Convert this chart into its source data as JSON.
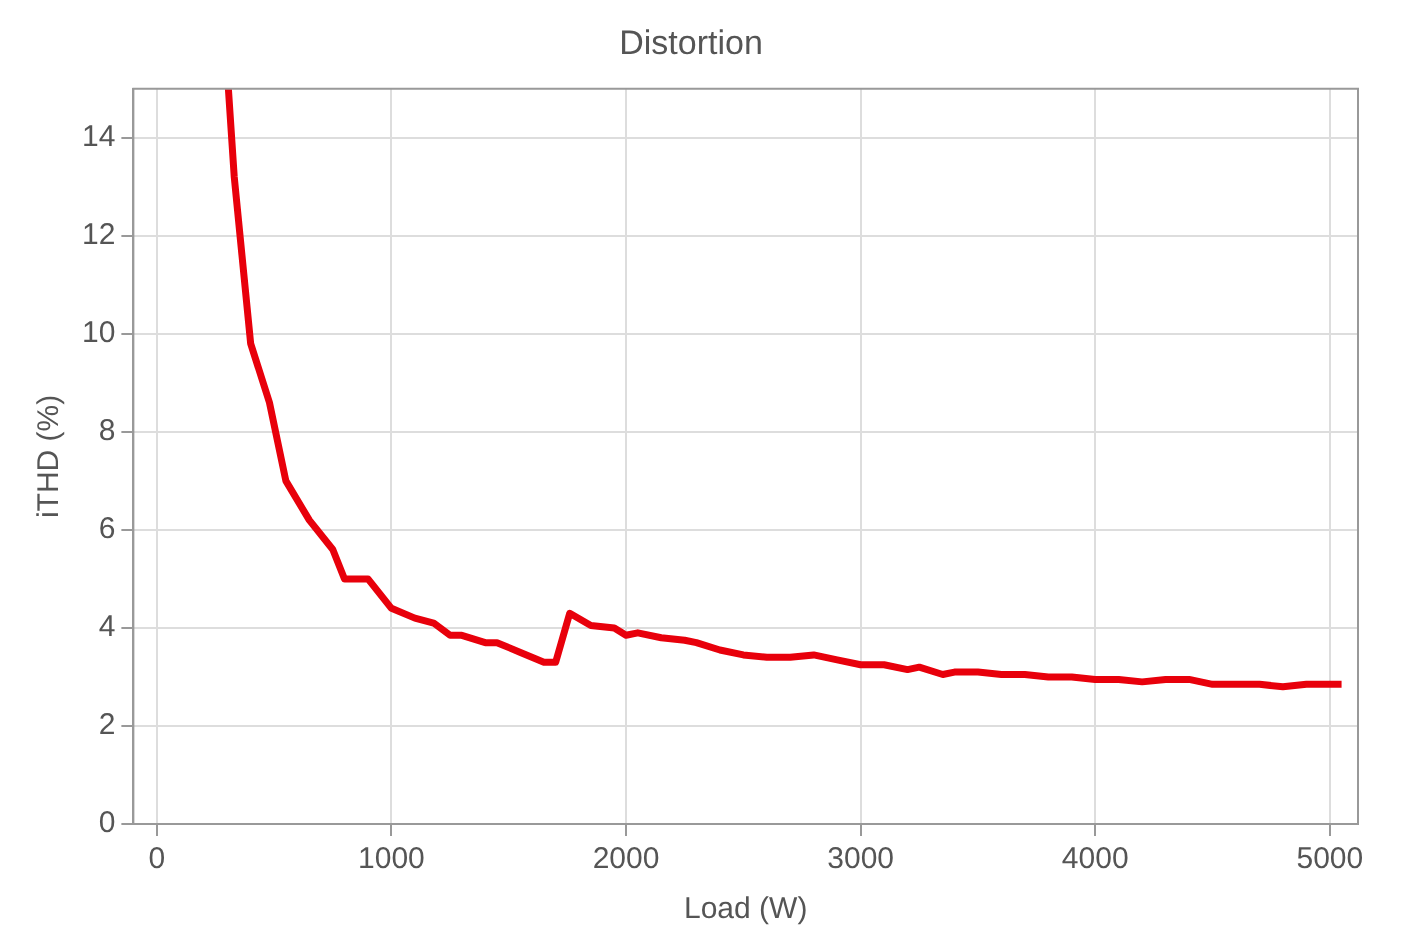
{
  "chart_data": {
    "type": "line",
    "title": "Distortion",
    "xlabel": "Load (W)",
    "ylabel": "iTHD (%)",
    "x": [
      305,
      330,
      400,
      480,
      550,
      650,
      750,
      800,
      900,
      1000,
      1100,
      1180,
      1250,
      1300,
      1400,
      1450,
      1550,
      1650,
      1700,
      1760,
      1850,
      1950,
      2000,
      2050,
      2150,
      2250,
      2300,
      2400,
      2500,
      2600,
      2700,
      2800,
      2900,
      3000,
      3100,
      3200,
      3250,
      3350,
      3400,
      3500,
      3600,
      3700,
      3800,
      3900,
      4000,
      4100,
      4200,
      4300,
      4400,
      4500,
      4600,
      4700,
      4800,
      4900,
      5050
    ],
    "series": [
      {
        "color": "#e8000b",
        "values": [
          15,
          13.2,
          9.8,
          8.6,
          7.0,
          6.2,
          5.6,
          5.0,
          5.0,
          4.4,
          4.2,
          4.1,
          3.85,
          3.85,
          3.7,
          3.7,
          3.5,
          3.3,
          3.3,
          4.3,
          4.05,
          4.0,
          3.85,
          3.9,
          3.8,
          3.75,
          3.7,
          3.55,
          3.45,
          3.4,
          3.4,
          3.45,
          3.35,
          3.25,
          3.25,
          3.15,
          3.2,
          3.05,
          3.1,
          3.1,
          3.05,
          3.05,
          3.0,
          3.0,
          2.95,
          2.95,
          2.9,
          2.95,
          2.95,
          2.85,
          2.85,
          2.85,
          2.8,
          2.85,
          2.85
        ]
      }
    ],
    "xlim": [
      -100,
      5120
    ],
    "xticks": [
      0,
      1000,
      2000,
      3000,
      4000,
      5000
    ],
    "ylim": [
      0,
      15
    ],
    "yticks": [
      0,
      2,
      4,
      6,
      8,
      10,
      12,
      14
    ],
    "grid": true,
    "legend": false,
    "marker": "none",
    "line_style": "solid"
  }
}
